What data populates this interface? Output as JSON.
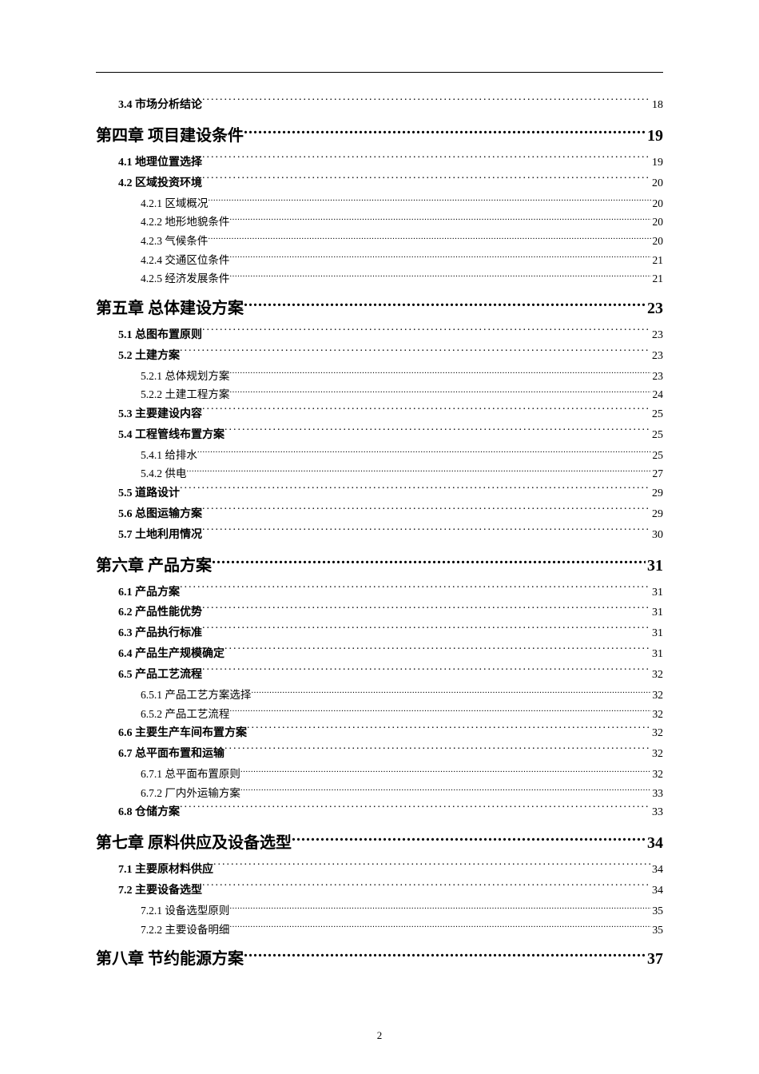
{
  "entries": [
    {
      "level": 2,
      "label": "3.4 市场分析结论",
      "page": "18"
    },
    {
      "level": 1,
      "label": "第四章 项目建设条件",
      "page": "19"
    },
    {
      "level": 2,
      "label": "4.1 地理位置选择",
      "page": "19"
    },
    {
      "level": 2,
      "label": "4.2 区域投资环境",
      "page": "20"
    },
    {
      "level": 3,
      "label": "4.2.1 区域概况",
      "page": "20"
    },
    {
      "level": 3,
      "label": "4.2.2 地形地貌条件",
      "page": "20"
    },
    {
      "level": 3,
      "label": "4.2.3 气候条件",
      "page": "20"
    },
    {
      "level": 3,
      "label": "4.2.4 交通区位条件",
      "page": "21"
    },
    {
      "level": 3,
      "label": "4.2.5 经济发展条件",
      "page": "21"
    },
    {
      "level": 1,
      "label": "第五章 总体建设方案",
      "page": "23"
    },
    {
      "level": 2,
      "label": "5.1 总图布置原则",
      "page": "23"
    },
    {
      "level": 2,
      "label": "5.2 土建方案",
      "page": "23"
    },
    {
      "level": 3,
      "label": "5.2.1 总体规划方案",
      "page": "23"
    },
    {
      "level": 3,
      "label": "5.2.2 土建工程方案",
      "page": "24"
    },
    {
      "level": 2,
      "label": "5.3 主要建设内容",
      "page": "25"
    },
    {
      "level": 2,
      "label": "5.4 工程管线布置方案",
      "page": "25"
    },
    {
      "level": 3,
      "label": "5.4.1 给排水",
      "page": "25"
    },
    {
      "level": 3,
      "label": "5.4.2 供电",
      "page": "27"
    },
    {
      "level": 2,
      "label": "5.5 道路设计",
      "page": "29"
    },
    {
      "level": 2,
      "label": "5.6 总图运输方案",
      "page": "29"
    },
    {
      "level": 2,
      "label": "5.7 土地利用情况",
      "page": "30"
    },
    {
      "level": 1,
      "label": "第六章 产品方案",
      "page": "31"
    },
    {
      "level": 2,
      "label": "6.1 产品方案",
      "page": "31"
    },
    {
      "level": 2,
      "label": "6.2 产品性能优势",
      "page": "31"
    },
    {
      "level": 2,
      "label": "6.3 产品执行标准",
      "page": "31"
    },
    {
      "level": 2,
      "label": "6.4 产品生产规模确定",
      "page": "31"
    },
    {
      "level": 2,
      "label": "6.5 产品工艺流程",
      "page": "32"
    },
    {
      "level": 3,
      "label": "6.5.1 产品工艺方案选择",
      "page": "32"
    },
    {
      "level": 3,
      "label": "6.5.2 产品工艺流程",
      "page": "32"
    },
    {
      "level": 2,
      "label": "6.6 主要生产车间布置方案",
      "page": "32"
    },
    {
      "level": 2,
      "label": "6.7 总平面布置和运输",
      "page": "32"
    },
    {
      "level": 3,
      "label": "6.7.1 总平面布置原则",
      "page": "32"
    },
    {
      "level": 3,
      "label": "6.7.2 厂内外运输方案",
      "page": "33"
    },
    {
      "level": 2,
      "label": "6.8 仓储方案",
      "page": "33"
    },
    {
      "level": 1,
      "label": "第七章 原料供应及设备选型",
      "page": "34"
    },
    {
      "level": 2,
      "label": "7.1 主要原材料供应",
      "page": "34"
    },
    {
      "level": 2,
      "label": "7.2 主要设备选型",
      "page": "34"
    },
    {
      "level": 3,
      "label": "7.2.1 设备选型原则",
      "page": "35"
    },
    {
      "level": 3,
      "label": "7.2.2 主要设备明细",
      "page": "35"
    },
    {
      "level": 1,
      "label": "第八章 节约能源方案",
      "page": "37"
    }
  ],
  "pageNumber": "2",
  "style": {
    "pageWidth": 950,
    "pageHeight": 1344,
    "background": "#ffffff",
    "textColor": "#000000",
    "h1FontSize": 20,
    "h2FontSize": 14,
    "h3FontSize": 13.5,
    "h1Indent": 0,
    "h2Indent": 28,
    "h3Indent": 56
  }
}
